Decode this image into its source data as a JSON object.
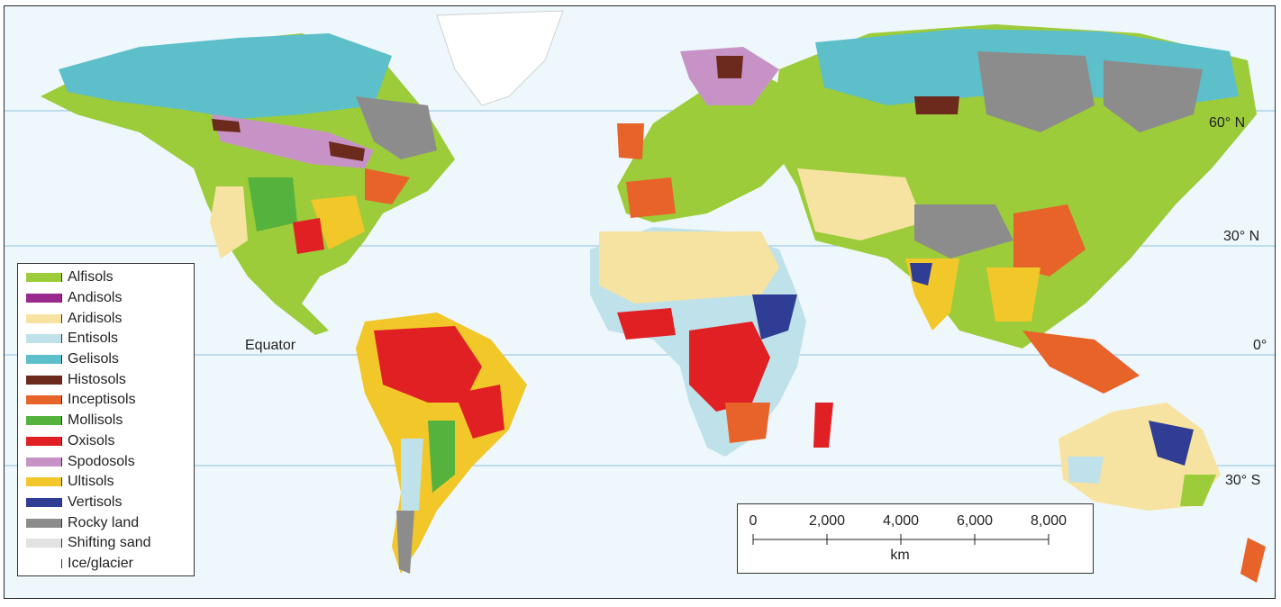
{
  "map": {
    "latitude_labels": [
      {
        "key": "lat-60n",
        "label": "60° N"
      },
      {
        "key": "lat-30n",
        "label": "30° N"
      },
      {
        "key": "lat-0",
        "label": "0°"
      },
      {
        "key": "lat-30s",
        "label": "30° S"
      }
    ],
    "equator_label": "Equator",
    "colors": {
      "ocean": "#eef7fb",
      "grid_line": "#8fc1dc"
    }
  },
  "legend": {
    "items": [
      {
        "label": "Alfisols",
        "color": "#9ccc3a"
      },
      {
        "label": "Andisols",
        "color": "#9b2a8f"
      },
      {
        "label": "Aridisols",
        "color": "#f7e3a1"
      },
      {
        "label": "Entisols",
        "color": "#bfe1ea"
      },
      {
        "label": "Gelisols",
        "color": "#5cbfc9"
      },
      {
        "label": "Histosols",
        "color": "#6b2a1c"
      },
      {
        "label": "Inceptisols",
        "color": "#e8632a"
      },
      {
        "label": "Mollisols",
        "color": "#54b23d"
      },
      {
        "label": "Oxisols",
        "color": "#e12024"
      },
      {
        "label": "Spodosols",
        "color": "#c793c7"
      },
      {
        "label": "Ultisols",
        "color": "#f2c72a"
      },
      {
        "label": "Vertisols",
        "color": "#2f3d95"
      },
      {
        "label": "Rocky land",
        "color": "#8c8c8c"
      },
      {
        "label": "Shifting sand",
        "color": "#e2e2e2"
      },
      {
        "label": "Ice/glacier",
        "color": "#ffffff"
      }
    ]
  },
  "scale_bar": {
    "ticks": [
      "0",
      "2,000",
      "4,000",
      "6,000",
      "8,000"
    ],
    "unit": "km"
  }
}
